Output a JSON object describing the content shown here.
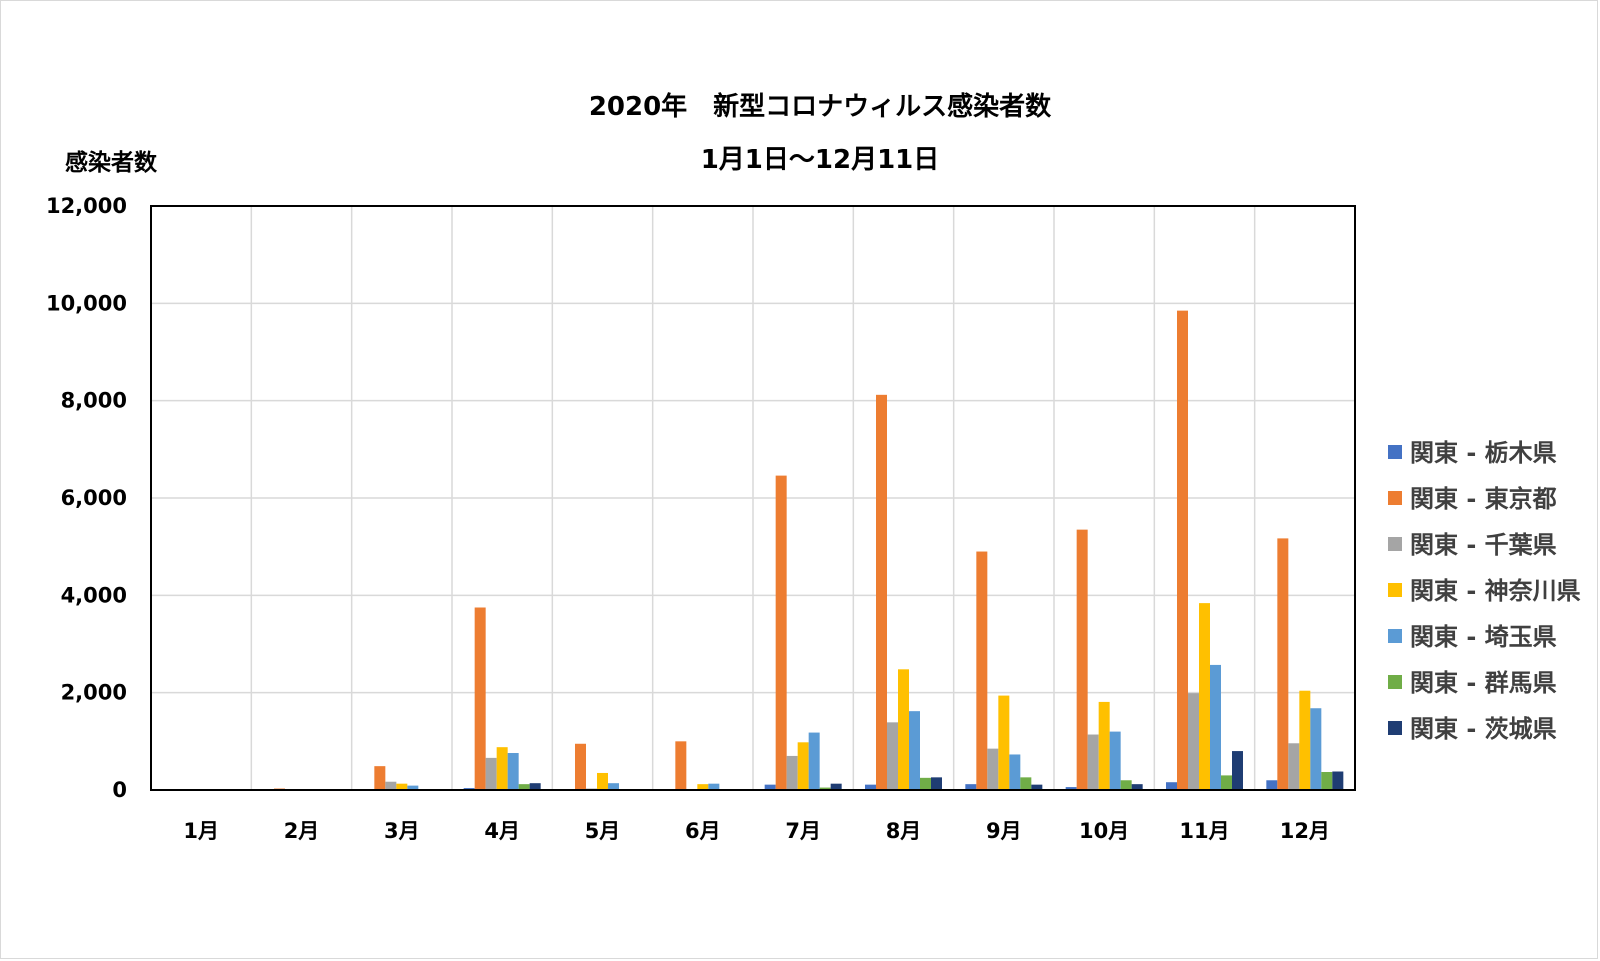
{
  "chart_data": {
    "type": "bar",
    "title": "2020年　新型コロナウィルス感染者数",
    "subtitle": "1月1日～12月11日",
    "ylabel": "感染者数",
    "xlabel": "",
    "ylim": [
      0,
      12000
    ],
    "yticks": [
      0,
      2000,
      4000,
      6000,
      8000,
      10000,
      12000
    ],
    "ytick_labels": [
      "0",
      "2,000",
      "4,000",
      "6,000",
      "8,000",
      "10,000",
      "12,000"
    ],
    "grid": true,
    "legend_position": "right",
    "categories": [
      "1月",
      "2月",
      "3月",
      "4月",
      "5月",
      "6月",
      "7月",
      "8月",
      "9月",
      "10月",
      "11月",
      "12月"
    ],
    "series": [
      {
        "name": "関東 - 栃木県",
        "color": "#4472c4",
        "values": [
          0,
          0,
          5,
          40,
          5,
          2,
          110,
          110,
          120,
          60,
          160,
          200
        ]
      },
      {
        "name": "関東 - 東京都",
        "color": "#ed7d31",
        "values": [
          2,
          30,
          490,
          3750,
          950,
          1000,
          6460,
          8120,
          4900,
          5350,
          9850,
          5170
        ]
      },
      {
        "name": "関東 - 千葉県",
        "color": "#a5a5a5",
        "values": [
          0,
          5,
          170,
          660,
          30,
          20,
          700,
          1390,
          850,
          1140,
          1990,
          960
        ]
      },
      {
        "name": "関東 - 神奈川県",
        "color": "#ffc000",
        "values": [
          0,
          10,
          130,
          880,
          350,
          120,
          980,
          2480,
          1940,
          1810,
          3840,
          2040
        ]
      },
      {
        "name": "関東 - 埼玉県",
        "color": "#5b9bd5",
        "values": [
          0,
          5,
          90,
          760,
          140,
          130,
          1180,
          1620,
          730,
          1200,
          2570,
          1680
        ]
      },
      {
        "name": "関東 - 群馬県",
        "color": "#70ad47",
        "values": [
          0,
          0,
          10,
          120,
          20,
          10,
          50,
          250,
          260,
          200,
          300,
          370
        ]
      },
      {
        "name": "関東 - 茨城県",
        "color": "#1f3d73",
        "values": [
          0,
          0,
          15,
          140,
          20,
          10,
          130,
          260,
          110,
          120,
          800,
          380
        ]
      }
    ]
  }
}
